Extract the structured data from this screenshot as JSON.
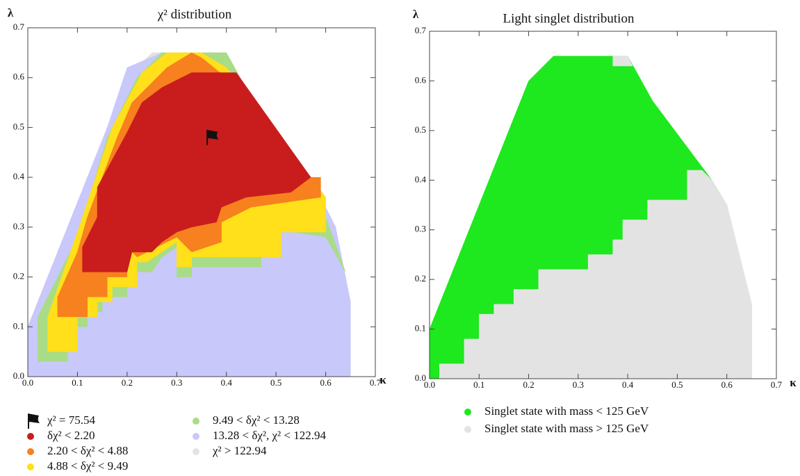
{
  "chart_data": [
    {
      "type": "region",
      "title": "χ² distribution",
      "xlabel": "κ",
      "ylabel": "λ",
      "xlim": [
        0,
        0.7
      ],
      "ylim": [
        0,
        0.7
      ],
      "xticks": [
        {
          "value": 0,
          "label": "0.0"
        },
        0.1,
        0.2,
        0.3,
        0.4,
        0.5,
        0.6,
        0.7
      ],
      "yticks": [
        {
          "value": 0,
          "label": "0.0"
        },
        0.1,
        0.2,
        0.3,
        0.4,
        0.5,
        0.6,
        0.7
      ],
      "marker": {
        "x": 0.36,
        "y": 0.48,
        "label": "χ² = 75.54"
      },
      "series": [
        {
          "name": "δχ² < 2.20",
          "color": "#c91c1c",
          "x": [
            0.11,
            0.11,
            0.14,
            0.14,
            0.2,
            0.23,
            0.27,
            0.33,
            0.42,
            0.52,
            0.57,
            0.53,
            0.44,
            0.39,
            0.38,
            0.33,
            0.3,
            0.27,
            0.25,
            0.21,
            0.2
          ],
          "y": [
            0.21,
            0.26,
            0.32,
            0.38,
            0.49,
            0.55,
            0.58,
            0.61,
            0.61,
            0.47,
            0.4,
            0.37,
            0.36,
            0.34,
            0.31,
            0.3,
            0.29,
            0.27,
            0.25,
            0.25,
            0.21
          ]
        },
        {
          "name": "2.20 < δχ² < 4.88",
          "color": "#f7801f",
          "x": [
            0.06,
            0.06,
            0.1,
            0.12,
            0.18,
            0.21,
            0.28,
            0.33,
            0.35,
            0.4,
            0.45,
            0.57,
            0.59,
            0.59,
            0.45,
            0.39,
            0.39,
            0.33,
            0.3,
            0.26,
            0.22,
            0.2,
            0.2,
            0.16,
            0.16,
            0.12,
            0.12
          ],
          "y": [
            0.12,
            0.16,
            0.25,
            0.32,
            0.48,
            0.55,
            0.62,
            0.65,
            0.64,
            0.6,
            0.56,
            0.4,
            0.4,
            0.36,
            0.34,
            0.31,
            0.27,
            0.25,
            0.28,
            0.26,
            0.24,
            0.26,
            0.2,
            0.2,
            0.16,
            0.16,
            0.12
          ]
        },
        {
          "name": "4.88 < δχ² < 9.49",
          "color": "#ffe01a",
          "x": [
            0.04,
            0.04,
            0.1,
            0.17,
            0.23,
            0.28,
            0.35,
            0.4,
            0.45,
            0.57,
            0.6,
            0.6,
            0.51,
            0.51,
            0.33,
            0.33,
            0.3,
            0.3,
            0.27,
            0.24,
            0.22,
            0.22,
            0.17,
            0.17,
            0.14,
            0.14,
            0.1,
            0.1
          ],
          "y": [
            0.05,
            0.12,
            0.29,
            0.5,
            0.61,
            0.65,
            0.65,
            0.62,
            0.56,
            0.4,
            0.36,
            0.29,
            0.29,
            0.24,
            0.24,
            0.22,
            0.22,
            0.27,
            0.25,
            0.23,
            0.23,
            0.18,
            0.18,
            0.15,
            0.15,
            0.12,
            0.12,
            0.05
          ]
        },
        {
          "name": "9.49 < δχ² < 13.28",
          "color": "#a9dc86",
          "x": [
            0.02,
            0.02,
            0.1,
            0.16,
            0.22,
            0.27,
            0.4,
            0.45,
            0.57,
            0.6,
            0.64,
            0.6,
            0.47,
            0.47,
            0.33,
            0.33,
            0.3,
            0.3,
            0.27,
            0.25,
            0.2,
            0.2,
            0.15,
            0.15,
            0.12,
            0.12,
            0.08,
            0.08
          ],
          "y": [
            0.03,
            0.12,
            0.28,
            0.48,
            0.6,
            0.65,
            0.65,
            0.56,
            0.4,
            0.32,
            0.21,
            0.28,
            0.3,
            0.22,
            0.22,
            0.2,
            0.2,
            0.26,
            0.24,
            0.21,
            0.21,
            0.16,
            0.16,
            0.13,
            0.13,
            0.1,
            0.1,
            0.03
          ]
        },
        {
          "name": "13.28 < δχ², χ² < 122.94",
          "color": "#c8c8fa",
          "x": [
            0,
            0,
            0.16,
            0.2,
            0.27,
            0.38,
            0.45,
            0.57,
            0.62,
            0.65,
            0.65
          ],
          "y": [
            0,
            0.1,
            0.5,
            0.62,
            0.65,
            0.65,
            0.56,
            0.4,
            0.3,
            0.15,
            0
          ]
        },
        {
          "name": "χ² > 122.94",
          "color": "#e3e3e3",
          "x": [
            0,
            0,
            0.2,
            0.25,
            0.4,
            0.45,
            0.57,
            0.62,
            0.65,
            0.65
          ],
          "y": [
            0,
            0.1,
            0.6,
            0.65,
            0.65,
            0.56,
            0.4,
            0.3,
            0.15,
            0
          ]
        }
      ]
    },
    {
      "type": "region",
      "title": "Light singlet distribution",
      "xlabel": "κ",
      "ylabel": "λ",
      "xlim": [
        0,
        0.7
      ],
      "ylim": [
        0,
        0.7
      ],
      "xticks": [
        {
          "value": 0,
          "label": "0.0"
        },
        0.1,
        0.2,
        0.3,
        0.4,
        0.5,
        0.6,
        0.7
      ],
      "yticks": [
        {
          "value": 0,
          "label": "0.0"
        },
        0.1,
        0.2,
        0.3,
        0.4,
        0.5,
        0.6,
        0.7
      ],
      "series": [
        {
          "name": "Singlet state with mass < 125 GeV",
          "color": "#1ee81e",
          "x": [
            0,
            0,
            0.2,
            0.25,
            0.4,
            0.45,
            0.57,
            0.6,
            0.65,
            0.65
          ],
          "y": [
            0,
            0.1,
            0.6,
            0.65,
            0.65,
            0.56,
            0.4,
            0.35,
            0.15,
            0
          ]
        },
        {
          "name": "Singlet state with mass > 125 GeV",
          "color": "#e3e3e3",
          "x": [
            0.02,
            0.02,
            0.07,
            0.07,
            0.1,
            0.1,
            0.13,
            0.13,
            0.17,
            0.17,
            0.22,
            0.22,
            0.32,
            0.32,
            0.37,
            0.37,
            0.39,
            0.39,
            0.44,
            0.44,
            0.52,
            0.52,
            0.55,
            0.57,
            0.6,
            0.65,
            0.65,
            null,
            0.37,
            0.4,
            0.41,
            0.37
          ],
          "y": [
            0,
            0.03,
            0.03,
            0.08,
            0.08,
            0.13,
            0.13,
            0.15,
            0.15,
            0.18,
            0.18,
            0.22,
            0.22,
            0.25,
            0.25,
            0.28,
            0.28,
            0.32,
            0.32,
            0.36,
            0.36,
            0.42,
            0.42,
            0.4,
            0.35,
            0.15,
            0,
            null,
            0.65,
            0.65,
            0.63,
            0.63
          ]
        }
      ]
    }
  ]
}
